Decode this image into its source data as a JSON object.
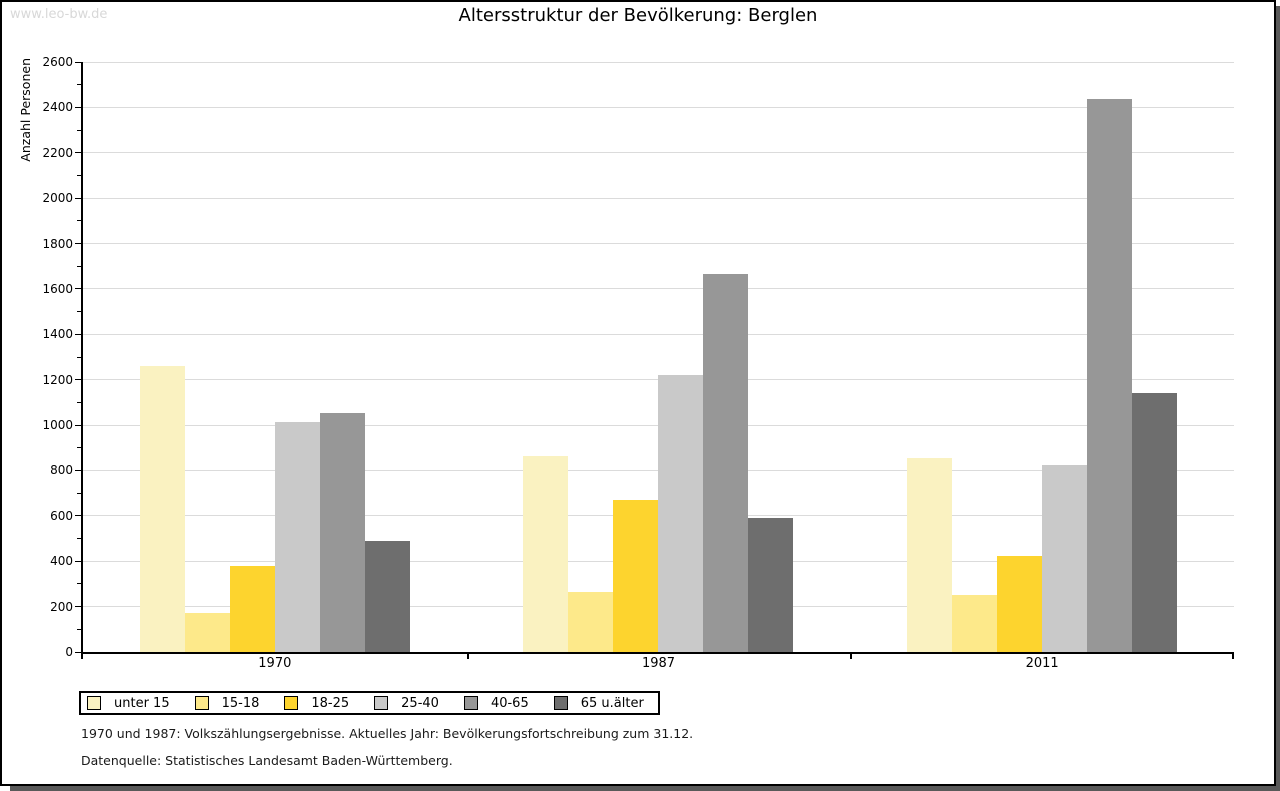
{
  "watermark": "www.leo-bw.de",
  "title": "Altersstruktur der Bevölkerung: Berglen",
  "chart_data": {
    "type": "bar",
    "title": "Altersstruktur der Bevölkerung: Berglen",
    "xlabel": "",
    "ylabel": "Anzahl Personen",
    "ylim": [
      0,
      2600
    ],
    "ytick_step": 200,
    "ytick_minor_step": 100,
    "grid": true,
    "legend_position": "bottom-left",
    "categories": [
      "1970",
      "1987",
      "2011"
    ],
    "series": [
      {
        "name": "unter 15",
        "color": "#faf2c1",
        "values": [
          1260,
          865,
          855
        ]
      },
      {
        "name": "15-18",
        "color": "#fde98a",
        "values": [
          170,
          265,
          250
        ]
      },
      {
        "name": "18-25",
        "color": "#fdd42e",
        "values": [
          380,
          670,
          425
        ]
      },
      {
        "name": "25-40",
        "color": "#c9c9c9",
        "values": [
          1015,
          1220,
          825
        ]
      },
      {
        "name": "40-65",
        "color": "#979797",
        "values": [
          1055,
          1665,
          2435
        ]
      },
      {
        "name": "65 u.älter",
        "color": "#6e6e6e",
        "values": [
          490,
          590,
          1140
        ]
      }
    ]
  },
  "footer": {
    "line1": "1970 und 1987: Volkszählungsergebnisse. Aktuelles Jahr: Bevölkerungsfortschreibung zum 31.12.",
    "line2": "Datenquelle: Statistisches Landesamt Baden-Württemberg."
  },
  "colors": {
    "page_border": "#000000",
    "shadow": "#595959",
    "gridline": "#dbdbdb",
    "watermark_text": "#d8d8d8"
  }
}
